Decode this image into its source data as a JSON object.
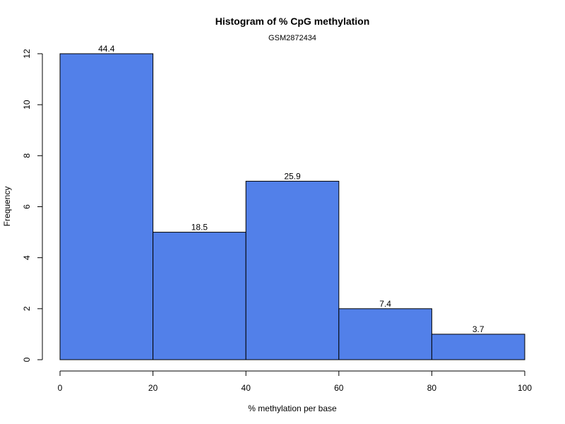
{
  "chart_data": {
    "type": "bar",
    "title": "Histogram of % CpG methylation",
    "subtitle": "GSM2872434",
    "xlabel": "% methylation per base",
    "ylabel": "Frequency",
    "bins": [
      {
        "x0": 0,
        "x1": 20,
        "count": 12,
        "label": "44.4"
      },
      {
        "x0": 20,
        "x1": 40,
        "count": 5,
        "label": "18.5"
      },
      {
        "x0": 40,
        "x1": 60,
        "count": 7,
        "label": "25.9"
      },
      {
        "x0": 60,
        "x1": 80,
        "count": 2,
        "label": "7.4"
      },
      {
        "x0": 80,
        "x1": 100,
        "count": 1,
        "label": "3.7"
      }
    ],
    "xlim": [
      0,
      100
    ],
    "ylim": [
      0,
      12
    ],
    "xticks": [
      "0",
      "20",
      "40",
      "60",
      "80",
      "100"
    ],
    "yticks": [
      "0",
      "2",
      "4",
      "6",
      "8",
      "10",
      "12"
    ],
    "bar_color": "#5280E9",
    "grid": false
  }
}
